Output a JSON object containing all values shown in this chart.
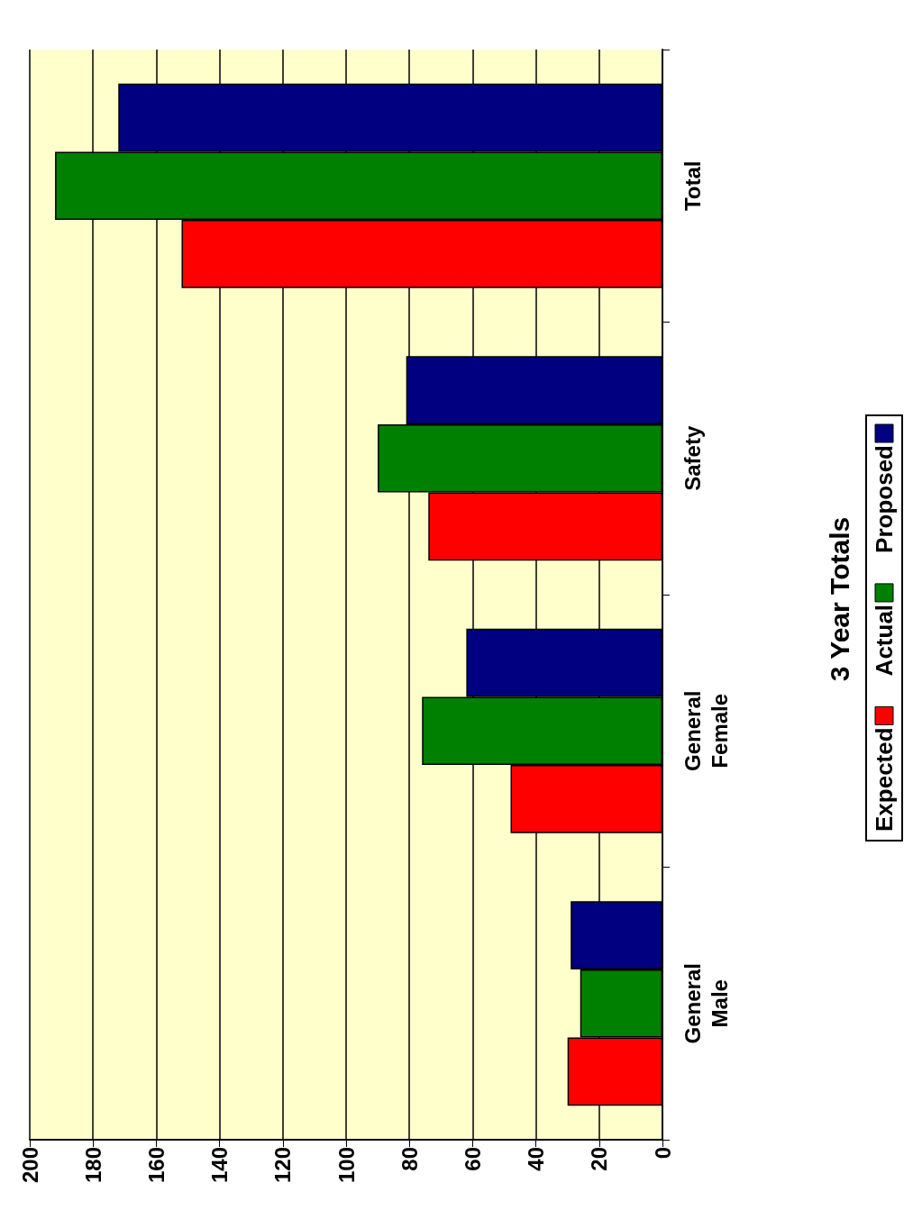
{
  "chart_data": {
    "type": "bar",
    "orientation": "horizontal",
    "title": "3 Year Totals",
    "categories": [
      "Total",
      "Safety",
      "General\nFemale",
      "General\nMale"
    ],
    "series": [
      {
        "name": "Expected",
        "color": "#ff0000",
        "values": [
          152,
          74,
          48,
          30
        ]
      },
      {
        "name": "Actual",
        "color": "#008000",
        "values": [
          192,
          90,
          76,
          26
        ]
      },
      {
        "name": "Proposed",
        "color": "#000080",
        "values": [
          172,
          81,
          62,
          29
        ]
      }
    ],
    "xlim": [
      200,
      0
    ],
    "xticks": [
      0,
      20,
      40,
      60,
      80,
      100,
      120,
      140,
      160,
      180,
      200
    ],
    "grid": "x",
    "legend": "right"
  }
}
